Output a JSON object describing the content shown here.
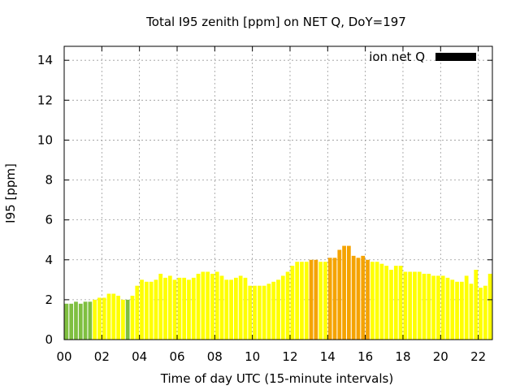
{
  "chart_data": {
    "type": "bar",
    "title": "Total I95 zenith [ppm] on NET Q, DoY=197",
    "xlabel": "Time of day UTC (15-minute intervals)",
    "ylabel": "I95 [ppm]",
    "xlim": [
      0,
      22.75
    ],
    "ylim": [
      0,
      14.7
    ],
    "x_ticks": [
      0,
      2,
      4,
      6,
      8,
      10,
      12,
      14,
      16,
      18,
      20,
      22
    ],
    "x_tick_labels": [
      "00",
      "02",
      "04",
      "06",
      "08",
      "10",
      "12",
      "14",
      "16",
      "18",
      "20",
      "22"
    ],
    "y_ticks": [
      0,
      2,
      4,
      6,
      8,
      10,
      12,
      14
    ],
    "y_tick_labels": [
      "0",
      "2",
      "4",
      "6",
      "8",
      "10",
      "12",
      "14"
    ],
    "grid": true,
    "legend_position": "top-right",
    "series": [
      {
        "name": "ion net Q",
        "color": "#000000",
        "interval_hours": 0.25,
        "values": [
          1.8,
          1.8,
          1.9,
          1.8,
          1.9,
          1.9,
          2.0,
          2.1,
          2.1,
          2.3,
          2.3,
          2.2,
          2.0,
          2.0,
          2.2,
          2.7,
          3.0,
          2.9,
          2.9,
          3.0,
          3.3,
          3.1,
          3.2,
          3.0,
          3.1,
          3.1,
          3.0,
          3.1,
          3.3,
          3.4,
          3.4,
          3.3,
          3.4,
          3.2,
          3.0,
          3.0,
          3.1,
          3.2,
          3.1,
          2.7,
          2.7,
          2.7,
          2.7,
          2.8,
          2.9,
          3.0,
          3.2,
          3.4,
          3.7,
          3.9,
          3.9,
          3.9,
          4.0,
          4.0,
          3.9,
          3.9,
          4.1,
          4.1,
          4.5,
          4.7,
          4.7,
          4.2,
          4.1,
          4.2,
          4.0,
          3.9,
          3.9,
          3.8,
          3.7,
          3.5,
          3.7,
          3.7,
          3.4,
          3.4,
          3.4,
          3.4,
          3.3,
          3.3,
          3.2,
          3.2,
          3.2,
          3.1,
          3.0,
          2.9,
          2.9,
          3.2,
          2.8,
          3.5,
          2.6,
          2.7,
          3.3,
          2.4
        ],
        "bar_colors": [
          "#7fbf40",
          "#7fbf40",
          "#7fbf40",
          "#7fbf40",
          "#7fbf40",
          "#7fbf40",
          "#ffff00",
          "#ffff00",
          "#ffff00",
          "#ffff00",
          "#ffff00",
          "#ffff00",
          "#ffff00",
          "#7fbf40",
          "#ffff00",
          "#ffff00",
          "#ffff00",
          "#ffff00",
          "#ffff00",
          "#ffff00",
          "#ffff00",
          "#ffff00",
          "#ffff00",
          "#ffff00",
          "#ffff00",
          "#ffff00",
          "#ffff00",
          "#ffff00",
          "#ffff00",
          "#ffff00",
          "#ffff00",
          "#ffff00",
          "#ffff00",
          "#ffff00",
          "#ffff00",
          "#ffff00",
          "#ffff00",
          "#ffff00",
          "#ffff00",
          "#ffff00",
          "#ffff00",
          "#ffff00",
          "#ffff00",
          "#ffff00",
          "#ffff00",
          "#ffff00",
          "#ffff00",
          "#ffff00",
          "#ffff00",
          "#ffff00",
          "#ffff00",
          "#ffff00",
          "#f5a300",
          "#f5a300",
          "#ffff00",
          "#ffff00",
          "#f5a300",
          "#f5a300",
          "#f5a300",
          "#f5a300",
          "#f5a300",
          "#f5a300",
          "#f5a300",
          "#f5a300",
          "#f5a300",
          "#ffff00",
          "#ffff00",
          "#ffff00",
          "#ffff00",
          "#ffff00",
          "#ffff00",
          "#ffff00",
          "#ffff00",
          "#ffff00",
          "#ffff00",
          "#ffff00",
          "#ffff00",
          "#ffff00",
          "#ffff00",
          "#ffff00",
          "#ffff00",
          "#ffff00",
          "#ffff00",
          "#ffff00",
          "#ffff00",
          "#ffff00",
          "#ffff00",
          "#ffff00",
          "#ffff00",
          "#ffff00",
          "#ffff00",
          "#ffff00"
        ]
      }
    ]
  }
}
